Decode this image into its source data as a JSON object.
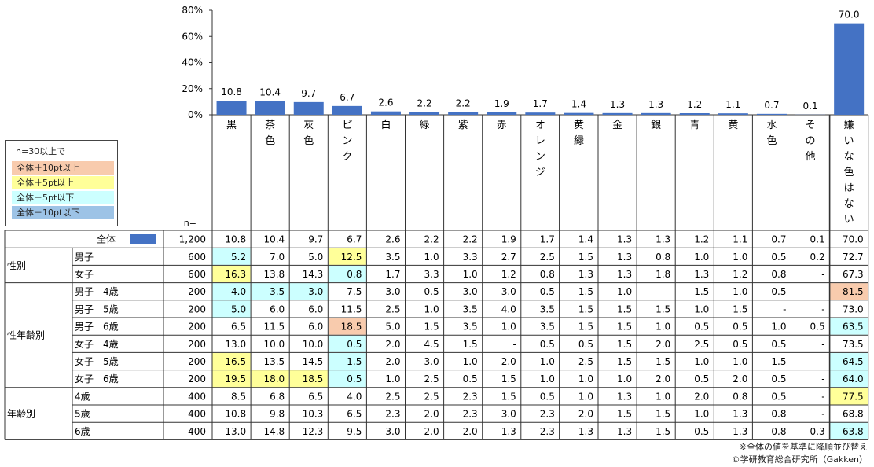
{
  "chart_data": {
    "type": "bar",
    "ylim": [
      0,
      80
    ],
    "yticks": [
      "0%",
      "20%",
      "40%",
      "60%",
      "80%"
    ],
    "bar_color": "#4472C4",
    "categories": [
      "黒",
      "茶色",
      "灰色",
      "ピンク",
      "白",
      "緑",
      "紫",
      "赤",
      "オレンジ",
      "黄緑",
      "金",
      "銀",
      "青",
      "黄",
      "水色",
      "その他",
      "嫌いな色はない"
    ],
    "values": [
      10.8,
      10.4,
      9.7,
      6.7,
      2.6,
      2.2,
      2.2,
      1.9,
      1.7,
      1.4,
      1.3,
      1.3,
      1.2,
      1.1,
      0.7,
      0.1,
      70.0
    ],
    "value_labels": [
      "10.8",
      "10.4",
      "9.7",
      "6.7",
      "2.6",
      "2.2",
      "2.2",
      "1.9",
      "1.7",
      "1.4",
      "1.3",
      "1.3",
      "1.2",
      "1.1",
      "0.7",
      "0.1",
      "70.0"
    ]
  },
  "table": {
    "n_label": "n=",
    "total_label": "全体",
    "total_n": "1,200",
    "total_values": [
      "10.8",
      "10.4",
      "9.7",
      "6.7",
      "2.6",
      "2.2",
      "2.2",
      "1.9",
      "1.7",
      "1.4",
      "1.3",
      "1.3",
      "1.2",
      "1.1",
      "0.7",
      "0.1",
      "70.0"
    ],
    "groups": [
      {
        "label": "性別",
        "rows": [
          {
            "label": "男子",
            "n": "600",
            "values": [
              "5.2",
              "7.0",
              "5.0",
              "12.5",
              "3.5",
              "1.0",
              "3.3",
              "2.7",
              "2.5",
              "1.5",
              "1.3",
              "0.8",
              "1.0",
              "1.0",
              "0.5",
              "0.2",
              "72.7"
            ],
            "hl": [
              "c",
              "",
              "",
              "y",
              "",
              "",
              "",
              "",
              "",
              "",
              "",
              "",
              "",
              "",
              "",
              "",
              ""
            ]
          },
          {
            "label": "女子",
            "n": "600",
            "values": [
              "16.3",
              "13.8",
              "14.3",
              "0.8",
              "1.7",
              "3.3",
              "1.0",
              "1.2",
              "0.8",
              "1.3",
              "1.3",
              "1.8",
              "1.3",
              "1.2",
              "0.8",
              "-",
              "67.3"
            ],
            "hl": [
              "y",
              "",
              "",
              "c",
              "",
              "",
              "",
              "",
              "",
              "",
              "",
              "",
              "",
              "",
              "",
              "",
              ""
            ]
          }
        ]
      },
      {
        "label": "性年齢別",
        "rows": [
          {
            "label": "男子　4歳",
            "n": "200",
            "values": [
              "4.0",
              "3.5",
              "3.0",
              "7.5",
              "3.0",
              "0.5",
              "3.0",
              "3.0",
              "0.5",
              "1.5",
              "1.0",
              "-",
              "1.5",
              "1.0",
              "0.5",
              "-",
              "81.5"
            ],
            "hl": [
              "c",
              "c",
              "c",
              "",
              "",
              "",
              "",
              "",
              "",
              "",
              "",
              "",
              "",
              "",
              "",
              "",
              "o"
            ]
          },
          {
            "label": "男子　5歳",
            "n": "200",
            "values": [
              "5.0",
              "6.0",
              "6.0",
              "11.5",
              "2.5",
              "1.0",
              "3.5",
              "4.0",
              "3.5",
              "1.5",
              "1.5",
              "1.5",
              "1.0",
              "1.5",
              "-",
              "-",
              "73.0"
            ],
            "hl": [
              "c",
              "",
              "",
              "",
              "",
              "",
              "",
              "",
              "",
              "",
              "",
              "",
              "",
              "",
              "",
              "",
              ""
            ]
          },
          {
            "label": "男子　6歳",
            "n": "200",
            "values": [
              "6.5",
              "11.5",
              "6.0",
              "18.5",
              "5.0",
              "1.5",
              "3.5",
              "1.0",
              "3.5",
              "1.5",
              "1.5",
              "1.0",
              "0.5",
              "0.5",
              "1.0",
              "0.5",
              "63.5"
            ],
            "hl": [
              "",
              "",
              "",
              "o",
              "",
              "",
              "",
              "",
              "",
              "",
              "",
              "",
              "",
              "",
              "",
              "",
              "c"
            ]
          },
          {
            "label": "女子　4歳",
            "n": "200",
            "values": [
              "13.0",
              "10.0",
              "10.0",
              "0.5",
              "2.0",
              "4.5",
              "1.5",
              "-",
              "0.5",
              "0.5",
              "1.5",
              "2.0",
              "2.5",
              "0.5",
              "0.5",
              "-",
              "73.5"
            ],
            "hl": [
              "",
              "",
              "",
              "c",
              "",
              "",
              "",
              "",
              "",
              "",
              "",
              "",
              "",
              "",
              "",
              "",
              ""
            ]
          },
          {
            "label": "女子　5歳",
            "n": "200",
            "values": [
              "16.5",
              "13.5",
              "14.5",
              "1.5",
              "2.0",
              "3.0",
              "1.0",
              "2.0",
              "1.0",
              "2.5",
              "1.5",
              "1.5",
              "1.0",
              "1.0",
              "1.5",
              "-",
              "64.5"
            ],
            "hl": [
              "y",
              "",
              "",
              "c",
              "",
              "",
              "",
              "",
              "",
              "",
              "",
              "",
              "",
              "",
              "",
              "",
              "c"
            ]
          },
          {
            "label": "女子　6歳",
            "n": "200",
            "values": [
              "19.5",
              "18.0",
              "18.5",
              "0.5",
              "1.0",
              "2.5",
              "0.5",
              "1.5",
              "1.0",
              "1.0",
              "1.0",
              "2.0",
              "0.5",
              "2.0",
              "0.5",
              "-",
              "64.0"
            ],
            "hl": [
              "y",
              "y",
              "y",
              "c",
              "",
              "",
              "",
              "",
              "",
              "",
              "",
              "",
              "",
              "",
              "",
              "",
              "c"
            ]
          }
        ]
      },
      {
        "label": "年齢別",
        "rows": [
          {
            "label": "4歳",
            "n": "400",
            "values": [
              "8.5",
              "6.8",
              "6.5",
              "4.0",
              "2.5",
              "2.5",
              "2.3",
              "1.5",
              "0.5",
              "1.0",
              "1.3",
              "1.0",
              "2.0",
              "0.8",
              "0.5",
              "-",
              "77.5"
            ],
            "hl": [
              "",
              "",
              "",
              "",
              "",
              "",
              "",
              "",
              "",
              "",
              "",
              "",
              "",
              "",
              "",
              "",
              "y"
            ]
          },
          {
            "label": "5歳",
            "n": "400",
            "values": [
              "10.8",
              "9.8",
              "10.3",
              "6.5",
              "2.3",
              "2.0",
              "2.3",
              "3.0",
              "2.3",
              "2.0",
              "1.5",
              "1.5",
              "1.0",
              "1.3",
              "0.8",
              "-",
              "68.8"
            ],
            "hl": [
              "",
              "",
              "",
              "",
              "",
              "",
              "",
              "",
              "",
              "",
              "",
              "",
              "",
              "",
              "",
              "",
              ""
            ]
          },
          {
            "label": "6歳",
            "n": "400",
            "values": [
              "13.0",
              "14.8",
              "12.3",
              "9.5",
              "3.0",
              "2.0",
              "2.0",
              "1.3",
              "2.3",
              "1.3",
              "1.3",
              "1.5",
              "0.5",
              "1.3",
              "0.8",
              "0.3",
              "63.8"
            ],
            "hl": [
              "",
              "",
              "",
              "",
              "",
              "",
              "",
              "",
              "",
              "",
              "",
              "",
              "",
              "",
              "",
              "",
              "c"
            ]
          }
        ]
      }
    ]
  },
  "legend": {
    "title": "n=30以上で",
    "items": [
      {
        "key": "o",
        "label": "全体＋10pt以上",
        "color": "#F8CBAD"
      },
      {
        "key": "y",
        "label": "全体＋5pt以上",
        "color": "#FFFF99"
      },
      {
        "key": "c",
        "label": "全体－5pt以下",
        "color": "#CCFFFF"
      },
      {
        "key": "b",
        "label": "全体－10pt以下",
        "color": "#9DC3E6"
      }
    ]
  },
  "notes": {
    "sort_note": "※全体の値を基準に降順並び替え",
    "copyright": "©学研教育総合研究所（Gakken）"
  }
}
